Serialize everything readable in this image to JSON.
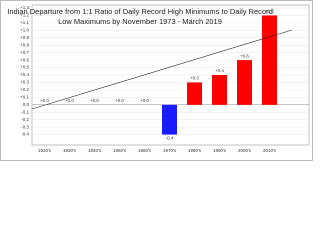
{
  "chart_data": {
    "type": "bar",
    "title": "Indian Departure from 1:1 Ratio of Daily Record High Minimums to Daily Record",
    "subtitle": "Low Maximums by November 1973 - March 2019",
    "categories": [
      "1920's",
      "1930's",
      "1940's",
      "1950's",
      "1960's",
      "1970's",
      "1980's",
      "1990's",
      "2000's",
      "2010's"
    ],
    "values": [
      0,
      0,
      0,
      0,
      0,
      -0.4,
      0.3,
      0.4,
      0.6,
      1.2
    ],
    "value_labels": [
      "+0.0",
      "+0.0",
      "+0.0",
      "+0.0",
      "+0.0",
      "-0.4",
      "+0.3",
      "+0.4",
      "+0.6",
      "+1.2"
    ],
    "colors": [
      "#ff0000",
      "#ff0000",
      "#ff0000",
      "#ff0000",
      "#ff0000",
      "#1a1aff",
      "#ff0000",
      "#ff0000",
      "#ff0000",
      "#ff0000"
    ],
    "ylim": [
      -0.5,
      1.3
    ],
    "yticks": [
      {
        "value": -0.4,
        "label": "-0.4"
      },
      {
        "value": -0.3,
        "label": "-0.3"
      },
      {
        "value": -0.2,
        "label": "-0.2"
      },
      {
        "value": -0.1,
        "label": "-0.1"
      },
      {
        "value": 0,
        "label": "0.0"
      },
      {
        "value": 0.1,
        "label": "+0.1"
      },
      {
        "value": 0.2,
        "label": "+0.2"
      },
      {
        "value": 0.3,
        "label": "+0.3"
      },
      {
        "value": 0.4,
        "label": "+0.4"
      },
      {
        "value": 0.5,
        "label": "+0.5"
      },
      {
        "value": 0.6,
        "label": "+0.6"
      },
      {
        "value": 0.7,
        "label": "+0.7"
      },
      {
        "value": 0.8,
        "label": "+0.8"
      },
      {
        "value": 0.9,
        "label": "+0.9"
      },
      {
        "value": 1.0,
        "label": "+1.0"
      },
      {
        "value": 1.1,
        "label": "+1.1"
      },
      {
        "value": 1.2,
        "label": "+1.2"
      },
      {
        "value": 1.3,
        "label": "+1.3"
      }
    ],
    "grid": true
  }
}
